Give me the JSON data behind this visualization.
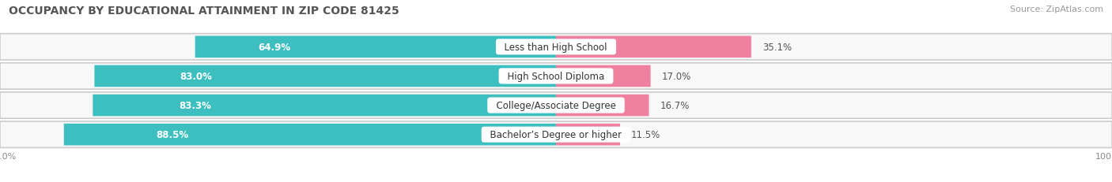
{
  "title": "OCCUPANCY BY EDUCATIONAL ATTAINMENT IN ZIP CODE 81425",
  "source": "Source: ZipAtlas.com",
  "categories": [
    "Less than High School",
    "High School Diploma",
    "College/Associate Degree",
    "Bachelor’s Degree or higher"
  ],
  "owner_pct": [
    64.9,
    83.0,
    83.3,
    88.5
  ],
  "renter_pct": [
    35.1,
    17.0,
    16.7,
    11.5
  ],
  "owner_color": "#3DBFBF",
  "renter_color": "#F080A0",
  "row_bg_color": "#EBEBEB",
  "row_inner_color": "#F8F8F8",
  "title_fontsize": 10,
  "source_fontsize": 8,
  "bar_label_fontsize": 8.5,
  "category_fontsize": 8.5,
  "legend_fontsize": 9,
  "axis_label_fontsize": 8,
  "figsize": [
    14.06,
    2.32
  ],
  "dpi": 100,
  "bar_height": 0.72,
  "owner_color_legend": "#3DBFBF",
  "renter_color_legend": "#F080A0",
  "total_width": 100.0
}
